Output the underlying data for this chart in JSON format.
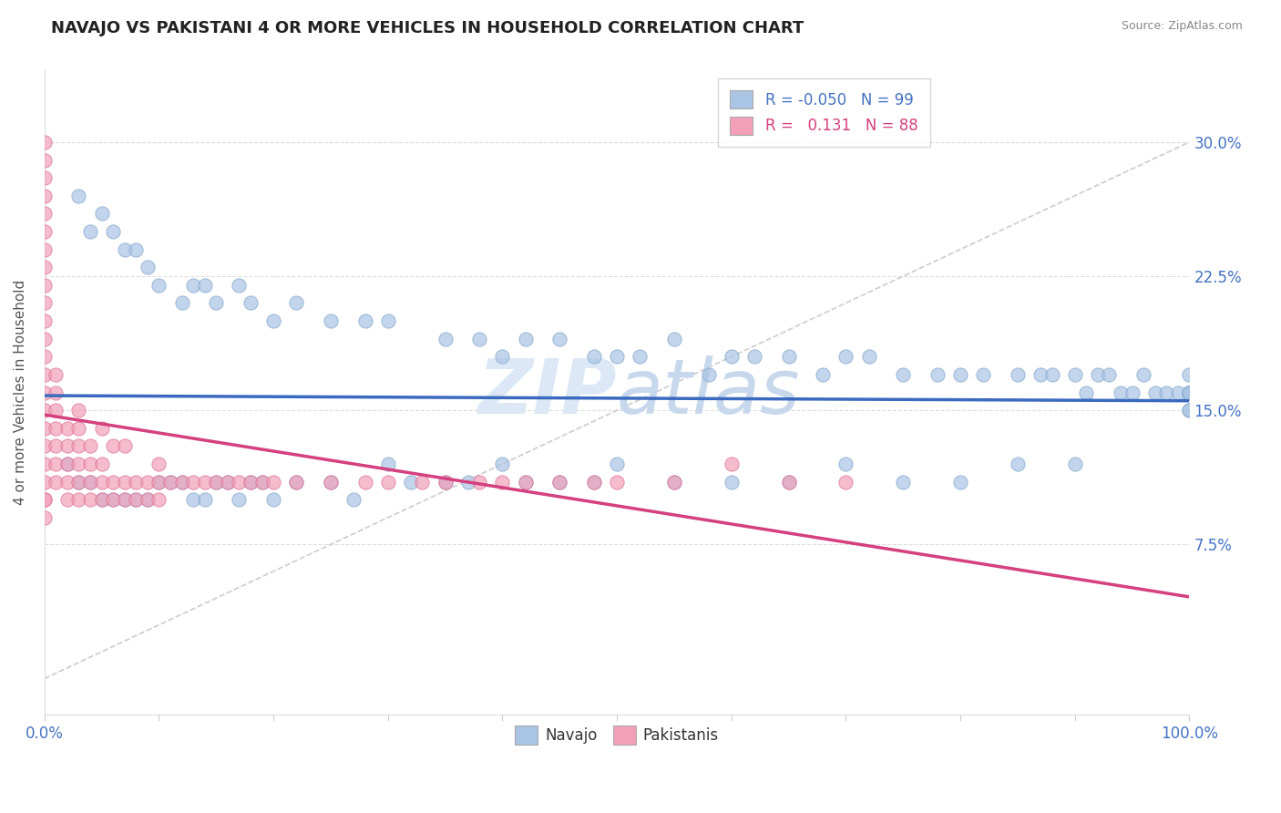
{
  "title": "NAVAJO VS PAKISTANI 4 OR MORE VEHICLES IN HOUSEHOLD CORRELATION CHART",
  "source": "Source: ZipAtlas.com",
  "ylabel": "4 or more Vehicles in Household",
  "xlim": [
    0,
    100
  ],
  "ylim": [
    -2,
    34
  ],
  "ytick_vals": [
    0,
    7.5,
    15.0,
    22.5,
    30.0
  ],
  "ytick_labels": [
    "",
    "7.5%",
    "15.0%",
    "22.5%",
    "30.0%"
  ],
  "legend_navajo_R": "-0.050",
  "legend_navajo_N": "99",
  "legend_pakistani_R": "0.131",
  "legend_pakistani_N": "88",
  "navajo_color": "#aac4e4",
  "pakistani_color": "#f2a0b8",
  "navajo_edge_color": "#88aacc",
  "pakistani_edge_color": "#dd7799",
  "navajo_line_color": "#3a6abf",
  "pakistani_line_color": "#d44080",
  "diag_line_color": "#cccccc",
  "watermark_color": "#e0e8f4",
  "navajo_x": [
    3,
    4,
    5,
    6,
    7,
    8,
    9,
    10,
    12,
    13,
    14,
    15,
    17,
    18,
    20,
    22,
    25,
    28,
    30,
    35,
    38,
    40,
    42,
    45,
    48,
    50,
    52,
    55,
    58,
    60,
    62,
    65,
    68,
    70,
    72,
    75,
    78,
    80,
    82,
    85,
    87,
    88,
    90,
    91,
    92,
    93,
    94,
    95,
    96,
    97,
    98,
    99,
    100,
    100,
    100,
    100,
    100,
    100,
    100,
    100,
    2,
    3,
    4,
    5,
    6,
    7,
    8,
    9,
    10,
    11,
    12,
    13,
    14,
    15,
    16,
    17,
    18,
    19,
    20,
    22,
    25,
    27,
    30,
    32,
    35,
    37,
    40,
    42,
    45,
    48,
    50,
    55,
    60,
    65,
    70,
    75,
    80,
    85,
    90
  ],
  "navajo_y": [
    27,
    25,
    26,
    25,
    24,
    24,
    23,
    22,
    21,
    22,
    22,
    21,
    22,
    21,
    20,
    21,
    20,
    20,
    20,
    19,
    19,
    18,
    19,
    19,
    18,
    18,
    18,
    19,
    17,
    18,
    18,
    18,
    17,
    18,
    18,
    17,
    17,
    17,
    17,
    17,
    17,
    17,
    17,
    16,
    17,
    17,
    16,
    16,
    17,
    16,
    16,
    16,
    17,
    16,
    16,
    15,
    16,
    16,
    15,
    16,
    12,
    11,
    11,
    10,
    10,
    10,
    10,
    10,
    11,
    11,
    11,
    10,
    10,
    11,
    11,
    10,
    11,
    11,
    10,
    11,
    11,
    10,
    12,
    11,
    11,
    11,
    12,
    11,
    11,
    11,
    12,
    11,
    11,
    11,
    12,
    11,
    11,
    12,
    12
  ],
  "pakistani_x": [
    0,
    0,
    0,
    0,
    0,
    0,
    0,
    0,
    0,
    0,
    0,
    0,
    0,
    0,
    0,
    0,
    0,
    0,
    0,
    0,
    0,
    0,
    0,
    1,
    1,
    1,
    1,
    1,
    1,
    1,
    2,
    2,
    2,
    2,
    2,
    3,
    3,
    3,
    3,
    3,
    3,
    4,
    4,
    4,
    4,
    5,
    5,
    5,
    5,
    6,
    6,
    6,
    7,
    7,
    7,
    8,
    8,
    9,
    9,
    10,
    10,
    10,
    11,
    12,
    13,
    14,
    15,
    16,
    17,
    18,
    19,
    20,
    22,
    25,
    28,
    30,
    33,
    35,
    38,
    40,
    42,
    45,
    48,
    50,
    55,
    60,
    65,
    70
  ],
  "pakistani_y": [
    9,
    10,
    10,
    11,
    12,
    13,
    14,
    15,
    16,
    17,
    18,
    19,
    20,
    21,
    22,
    23,
    24,
    25,
    26,
    27,
    28,
    29,
    30,
    11,
    12,
    13,
    14,
    15,
    16,
    17,
    10,
    11,
    12,
    13,
    14,
    10,
    11,
    12,
    13,
    14,
    15,
    10,
    11,
    12,
    13,
    10,
    11,
    12,
    14,
    10,
    11,
    13,
    10,
    11,
    13,
    10,
    11,
    10,
    11,
    10,
    11,
    12,
    11,
    11,
    11,
    11,
    11,
    11,
    11,
    11,
    11,
    11,
    11,
    11,
    11,
    11,
    11,
    11,
    11,
    11,
    11,
    11,
    11,
    11,
    11,
    12,
    11,
    11
  ]
}
